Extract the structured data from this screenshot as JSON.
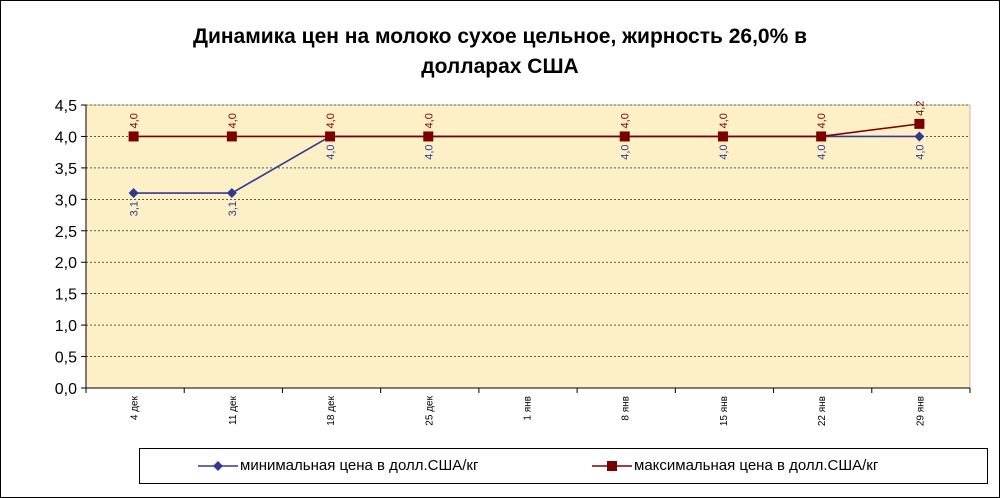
{
  "chart_data": {
    "type": "line",
    "title_line1": "Динамика цен на молоко сухое цельное, жирность 26,0%  в",
    "title_line2": "долларах США",
    "categories": [
      "4 дек",
      "11 дек",
      "18 дек",
      "25 дек",
      "1 янв",
      "8 янв",
      "15 янв",
      "22 янв",
      "29 янв"
    ],
    "y_tick_labels": [
      "0,0",
      "0,5",
      "1,0",
      "1,5",
      "2,0",
      "2,5",
      "3,0",
      "3,5",
      "4,0",
      "4,5"
    ],
    "ylim": [
      0,
      4.5
    ],
    "grid": true,
    "legend_position": "bottom",
    "plot_background": "#fdf0c6",
    "series": [
      {
        "name": "минимальная цена в долл.США/кг",
        "color": "#2f3a96",
        "marker": "diamond",
        "values": [
          3.1,
          3.1,
          4.0,
          4.0,
          null,
          4.0,
          4.0,
          4.0,
          4.0
        ],
        "labels": [
          "3,1",
          "3,1",
          "4,0",
          "4,0",
          null,
          "4,0",
          "4,0",
          "4,0",
          "4,0"
        ]
      },
      {
        "name": "максимальная цена в долл.США/кг",
        "color": "#7b0000",
        "marker": "square",
        "values": [
          4.0,
          4.0,
          4.0,
          4.0,
          null,
          4.0,
          4.0,
          4.0,
          4.2
        ],
        "labels": [
          "4,0",
          "4,0",
          "4,0",
          "4,0",
          null,
          "4,0",
          "4,0",
          "4,0",
          "4,2"
        ]
      }
    ]
  }
}
